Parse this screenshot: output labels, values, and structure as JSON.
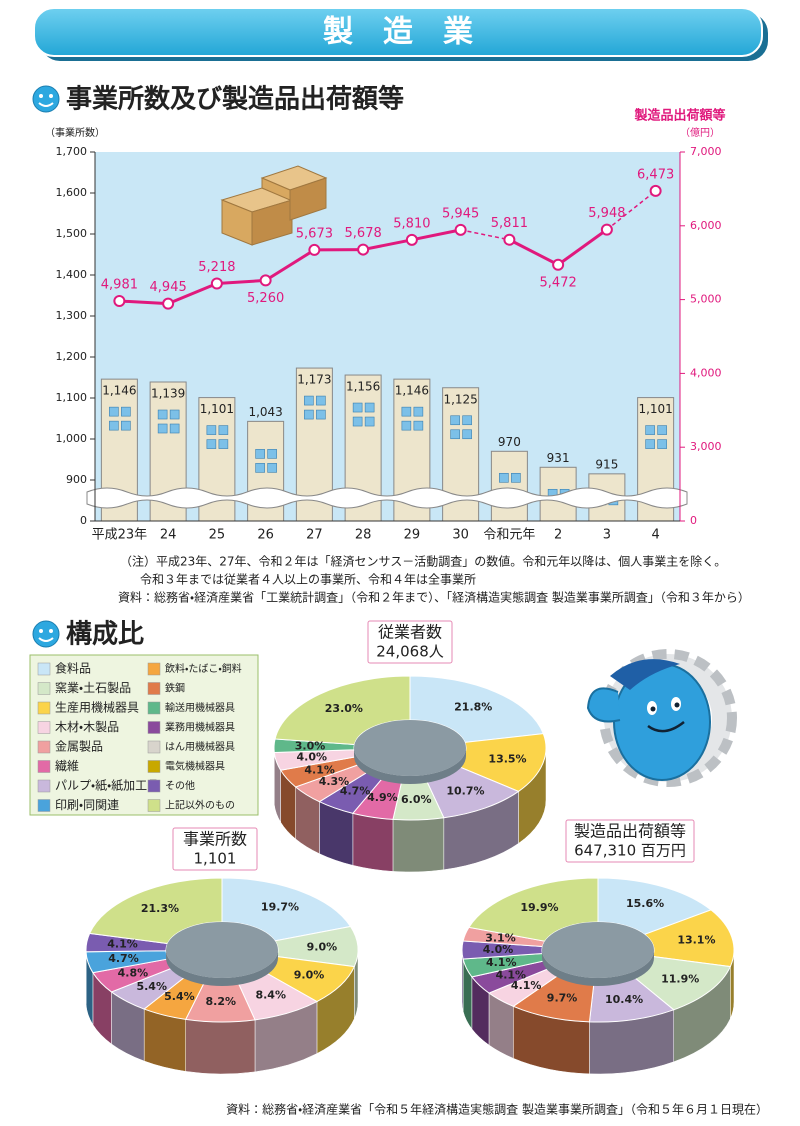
{
  "header": {
    "title": "製　造　業"
  },
  "section1": {
    "title": "事業所数及び製造品出荷額等"
  },
  "chart_data": [
    {
      "type": "bar_line",
      "categories": [
        "平成23年",
        "24",
        "25",
        "26",
        "27",
        "28",
        "29",
        "30",
        "令和元年",
        "2",
        "3",
        "4"
      ],
      "y_label": "（事業所数）",
      "y2_title": "製造品出荷額等",
      "y2_label": "（億円）",
      "ylim": [
        0,
        1700
      ],
      "y_break": [
        0,
        800
      ],
      "yticks": [
        0,
        900,
        {
          "value": 1000,
          "label": "1,000"
        },
        {
          "value": 1100,
          "label": "1,100"
        },
        {
          "value": 1200,
          "label": "1,200"
        },
        {
          "value": 1300,
          "label": "1,300"
        },
        {
          "value": 1400,
          "label": "1,400"
        },
        {
          "value": 1500,
          "label": "1,500"
        },
        {
          "value": 1600,
          "label": "1,600"
        },
        {
          "value": 1700,
          "label": "1,700"
        }
      ],
      "y2lim": [
        0,
        7000
      ],
      "y2_break": [
        0,
        2000
      ],
      "y2ticks": [
        0,
        {
          "value": 3000,
          "label": "3,000"
        },
        {
          "value": 4000,
          "label": "4,000"
        },
        {
          "value": 5000,
          "label": "5,000"
        },
        {
          "value": 6000,
          "label": "6,000"
        },
        {
          "value": 7000,
          "label": "7,000"
        }
      ],
      "series": [
        {
          "type": "bar",
          "color": "#ede5cc",
          "values": [
            1146,
            1139,
            1101,
            1043,
            1173,
            1156,
            1146,
            1125,
            970,
            931,
            915,
            1101
          ],
          "value_labels": [
            "1,146",
            "1,139",
            "1,101",
            "1,043",
            "1,173",
            "1,156",
            "1,146",
            "1,125",
            "970",
            "931",
            "915",
            "1,101"
          ]
        },
        {
          "type": "line",
          "axis": "y2",
          "color": "#e0197d",
          "dashed_from": [
            7,
            10
          ],
          "values": [
            4981,
            4945,
            5218,
            5260,
            5673,
            5678,
            5810,
            5945,
            5811,
            5472,
            5948,
            6473
          ],
          "value_labels": [
            "4,981",
            "4,945",
            "5,218",
            "5,260",
            "5,673",
            "5,678",
            "5,810",
            "5,945",
            "5,811",
            "5,472",
            "5,948",
            "6,473"
          ]
        }
      ]
    },
    {
      "type": "donut",
      "title": "従業者数",
      "subtitle": "24,068人",
      "values": [
        21.8,
        13.5,
        10.7,
        6.0,
        4.9,
        4.7,
        4.3,
        4.1,
        4.0,
        3.0,
        23.0
      ],
      "value_labels": [
        "21.8%",
        "13.5%",
        "10.7%",
        "6.0%",
        "4.9%",
        "4.7%",
        "4.3%",
        "4.1%",
        "4.0%",
        "3.0%",
        "23.0%"
      ],
      "colors": [
        "#c9e6f7",
        "#fbd44a",
        "#c9b8dc",
        "#d4e8c8",
        "#e26aa6",
        "#7a5cb0",
        "#f0a0a0",
        "#e07b4a",
        "#f7d4e2",
        "#5fb88a",
        "#cfe08a"
      ]
    },
    {
      "type": "donut",
      "title": "事業所数",
      "subtitle": "1,101",
      "values": [
        19.7,
        9.0,
        9.0,
        8.4,
        8.2,
        5.4,
        5.4,
        4.8,
        4.7,
        4.1,
        21.3
      ],
      "value_labels": [
        "19.7%",
        "9.0%",
        "9.0%",
        "8.4%",
        "8.2%",
        "5.4%",
        "5.4%",
        "4.8%",
        "4.7%",
        "4.1%",
        "21.3%"
      ],
      "colors": [
        "#c9e6f7",
        "#d4e8c8",
        "#fbd44a",
        "#f7d4e2",
        "#f0a0a0",
        "#f5a640",
        "#c9b8dc",
        "#e26aa6",
        "#4aa3dc",
        "#7a5cb0",
        "#cfe08a"
      ]
    },
    {
      "type": "donut",
      "title": "製造品出荷額等",
      "subtitle": "647,310 百万円",
      "values": [
        15.6,
        13.1,
        11.9,
        10.4,
        9.7,
        4.1,
        4.1,
        4.1,
        4.0,
        3.1,
        19.9
      ],
      "value_labels": [
        "15.6%",
        "13.1%",
        "11.9%",
        "10.4%",
        "9.7%",
        "4.1%",
        "4.1%",
        "4.1%",
        "4.0%",
        "3.1%",
        "19.9%"
      ],
      "colors": [
        "#c9e6f7",
        "#fbd44a",
        "#d4e8c8",
        "#c9b8dc",
        "#e07b4a",
        "#f7d4e2",
        "#8a4a9c",
        "#5fb88a",
        "#7a5cb0",
        "#f0a0a0",
        "#cfe08a"
      ]
    }
  ],
  "notes": [
    "（注）平成23年、27年、令和２年は「経済センサス－活動調査」の数値。令和元年以降は、個人事業主を除く。",
    "令和３年までは従業者４人以上の事業所、令和４年は全事業所",
    "資料：総務省・経済産業省「工業統計調査」（令和２年まで）、「経済構造実態調査 製造業事業所調査」（令和３年から）"
  ],
  "section2": {
    "title": "構成比"
  },
  "composition_legend": [
    {
      "name": "食料品",
      "color": "#c9e6f7"
    },
    {
      "name": "窯業・土石製品",
      "color": "#d4e8c8"
    },
    {
      "name": "生産用機械器具",
      "color": "#fbd44a"
    },
    {
      "name": "木材・木製品",
      "color": "#f7d4e2"
    },
    {
      "name": "金属製品",
      "color": "#f0a0a0"
    },
    {
      "name": "繊維",
      "color": "#e26aa6"
    },
    {
      "name": "パルプ・紙・紙加工品",
      "color": "#c9b8dc"
    },
    {
      "name": "印刷・同関連",
      "color": "#4aa3dc"
    },
    {
      "name": "飲料・たばこ・飼料",
      "color": "#f5a640"
    },
    {
      "name": "鉄鋼",
      "color": "#e07b4a"
    },
    {
      "name": "輸送用機械器具",
      "color": "#5fb88a"
    },
    {
      "name": "業務用機械器具",
      "color": "#8a4a9c"
    },
    {
      "name": "はん用機械器具",
      "color": "#d8d4cc"
    },
    {
      "name": "電気機械器具",
      "color": "#c8a800"
    },
    {
      "name": "その他",
      "color": "#7a5cb0"
    },
    {
      "name": "上記以外のもの",
      "color": "#cfe08a"
    }
  ],
  "source": "資料：総務省・経済産業省「令和５年経済構造実態調査 製造業事業所調査」（令和５年６月１日現在）"
}
